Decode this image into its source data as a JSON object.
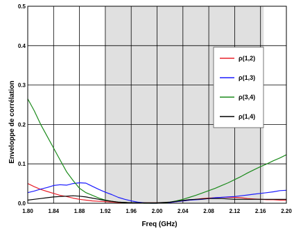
{
  "chart_data": {
    "type": "line",
    "title": "",
    "xlabel": "Freq (GHz)",
    "ylabel": "Enveloppe de corrélation",
    "xlim": [
      1.8,
      2.2
    ],
    "ylim": [
      0,
      0.5
    ],
    "x_ticks": [
      "1.80",
      "1.84",
      "1.88",
      "1.92",
      "1.96",
      "2.00",
      "2.04",
      "2.08",
      "2.12",
      "2.16",
      "2.20"
    ],
    "y_ticks": [
      "0.0",
      "0.1",
      "0.2",
      "0.3",
      "0.4",
      "0.5"
    ],
    "grid": true,
    "legend_position": "right",
    "shaded_band": {
      "x_start": 1.92,
      "x_end": 2.165,
      "color": "#e0e0e0"
    },
    "series": [
      {
        "name": "ρ(1,2)",
        "color": "#e8202a",
        "x": [
          1.8,
          1.81,
          1.82,
          1.83,
          1.84,
          1.85,
          1.86,
          1.87,
          1.88,
          1.89,
          1.9,
          1.91,
          1.92,
          1.93,
          1.94,
          1.95,
          1.96,
          1.97,
          1.98,
          1.99,
          2.0,
          2.01,
          2.02,
          2.03,
          2.04,
          2.05,
          2.06,
          2.07,
          2.08,
          2.09,
          2.1,
          2.11,
          2.12,
          2.13,
          2.14,
          2.15,
          2.16,
          2.17,
          2.18,
          2.19,
          2.2
        ],
        "y": [
          0.05,
          0.042,
          0.035,
          0.03,
          0.025,
          0.02,
          0.017,
          0.013,
          0.01,
          0.008,
          0.006,
          0.005,
          0.004,
          0.003,
          0.002,
          0.002,
          0.001,
          0.001,
          0.001,
          0.001,
          0.001,
          0.001,
          0.002,
          0.004,
          0.006,
          0.008,
          0.01,
          0.012,
          0.013,
          0.014,
          0.015,
          0.015,
          0.015,
          0.014,
          0.012,
          0.011,
          0.01,
          0.009,
          0.009,
          0.008,
          0.008
        ]
      },
      {
        "name": "ρ(1,3)",
        "color": "#1a1aff",
        "x": [
          1.8,
          1.81,
          1.82,
          1.83,
          1.84,
          1.85,
          1.86,
          1.87,
          1.88,
          1.89,
          1.9,
          1.91,
          1.92,
          1.93,
          1.94,
          1.95,
          1.96,
          1.97,
          1.98,
          1.99,
          2.0,
          2.01,
          2.02,
          2.03,
          2.04,
          2.05,
          2.06,
          2.07,
          2.08,
          2.09,
          2.1,
          2.11,
          2.12,
          2.13,
          2.14,
          2.15,
          2.16,
          2.17,
          2.18,
          2.19,
          2.2
        ],
        "y": [
          0.027,
          0.031,
          0.036,
          0.04,
          0.045,
          0.047,
          0.046,
          0.05,
          0.052,
          0.051,
          0.043,
          0.035,
          0.028,
          0.022,
          0.015,
          0.01,
          0.006,
          0.003,
          0.001,
          0.0,
          0.0,
          0.001,
          0.002,
          0.004,
          0.006,
          0.008,
          0.009,
          0.01,
          0.012,
          0.014,
          0.015,
          0.016,
          0.017,
          0.019,
          0.021,
          0.023,
          0.025,
          0.027,
          0.029,
          0.032,
          0.033
        ]
      },
      {
        "name": "ρ(3,4)",
        "color": "#1a8a1a",
        "x": [
          1.8,
          1.81,
          1.82,
          1.83,
          1.84,
          1.85,
          1.86,
          1.87,
          1.88,
          1.89,
          1.9,
          1.91,
          1.92,
          1.93,
          1.94,
          1.95,
          1.96,
          1.97,
          1.98,
          1.99,
          2.0,
          2.01,
          2.02,
          2.03,
          2.04,
          2.05,
          2.06,
          2.07,
          2.08,
          2.09,
          2.1,
          2.11,
          2.12,
          2.13,
          2.14,
          2.15,
          2.16,
          2.17,
          2.18,
          2.19,
          2.2
        ],
        "y": [
          0.265,
          0.235,
          0.2,
          0.17,
          0.14,
          0.11,
          0.08,
          0.058,
          0.038,
          0.027,
          0.02,
          0.013,
          0.008,
          0.005,
          0.003,
          0.002,
          0.001,
          0.001,
          0.0,
          0.0,
          0.0,
          0.001,
          0.003,
          0.006,
          0.01,
          0.015,
          0.02,
          0.026,
          0.032,
          0.038,
          0.045,
          0.052,
          0.06,
          0.068,
          0.077,
          0.085,
          0.093,
          0.1,
          0.108,
          0.115,
          0.123
        ]
      },
      {
        "name": "ρ(1,4)",
        "color": "#000000",
        "x": [
          1.8,
          1.81,
          1.82,
          1.83,
          1.84,
          1.85,
          1.86,
          1.87,
          1.88,
          1.89,
          1.9,
          1.91,
          1.92,
          1.93,
          1.94,
          1.95,
          1.96,
          1.97,
          1.98,
          1.99,
          2.0,
          2.01,
          2.02,
          2.03,
          2.04,
          2.05,
          2.06,
          2.07,
          2.08,
          2.09,
          2.1,
          2.11,
          2.12,
          2.13,
          2.14,
          2.15,
          2.16,
          2.17,
          2.18,
          2.19,
          2.2
        ],
        "y": [
          0.008,
          0.01,
          0.012,
          0.014,
          0.016,
          0.017,
          0.018,
          0.019,
          0.018,
          0.016,
          0.013,
          0.01,
          0.007,
          0.005,
          0.003,
          0.002,
          0.001,
          0.001,
          0.001,
          0.001,
          0.001,
          0.002,
          0.003,
          0.005,
          0.007,
          0.009,
          0.01,
          0.011,
          0.012,
          0.012,
          0.012,
          0.011,
          0.01,
          0.01,
          0.01,
          0.01,
          0.01,
          0.01,
          0.01,
          0.01,
          0.01
        ]
      }
    ]
  }
}
